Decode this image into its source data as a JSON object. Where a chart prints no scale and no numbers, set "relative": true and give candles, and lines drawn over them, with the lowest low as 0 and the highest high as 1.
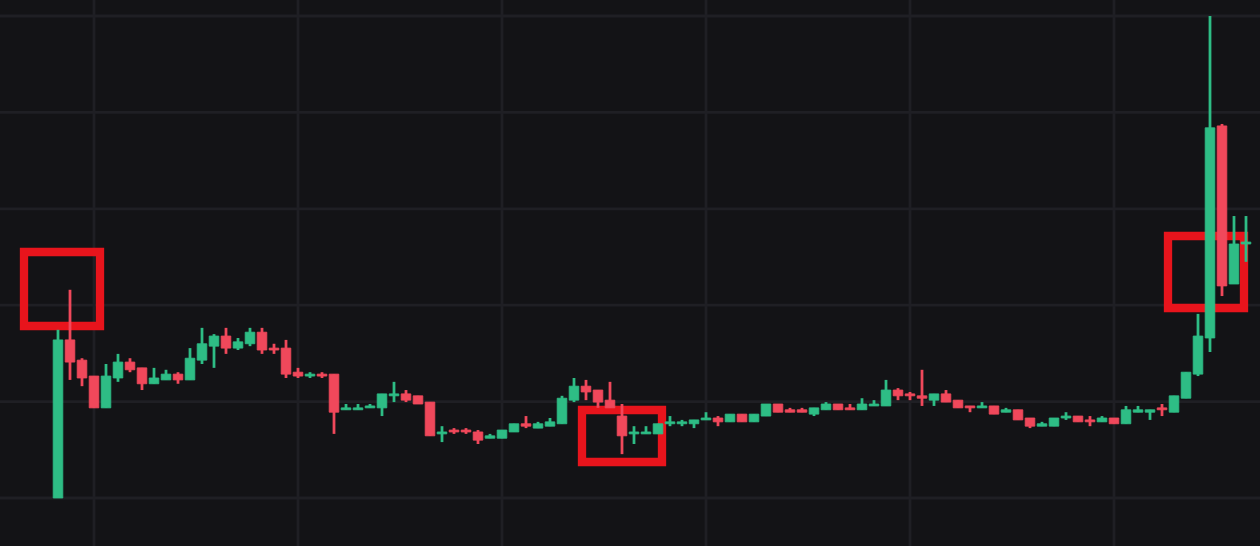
{
  "chart_data": {
    "type": "candlestick",
    "relative": true,
    "grid": true,
    "categories": [
      null,
      null,
      null,
      null,
      null,
      null,
      null,
      null,
      null,
      null,
      null,
      null,
      null,
      null,
      null,
      null,
      null,
      null,
      null,
      null,
      null,
      null,
      null,
      null,
      null,
      null,
      null,
      null,
      null,
      null,
      null,
      null,
      null,
      null,
      null,
      null,
      null,
      null,
      null,
      null,
      null,
      null,
      null,
      null,
      null,
      null,
      null,
      null,
      null,
      null,
      null,
      null,
      null,
      null,
      null,
      null,
      null,
      null,
      null,
      null,
      null,
      null,
      null,
      null,
      null,
      null,
      null,
      null,
      null,
      null,
      null,
      null,
      null,
      null,
      null,
      null,
      null,
      null,
      null,
      null,
      null,
      null,
      null,
      null,
      null,
      null,
      null,
      null,
      null,
      null,
      null,
      null,
      null,
      null,
      null,
      null,
      null,
      null,
      null,
      null
    ],
    "ohlc": [
      [
        0,
        0.349,
        0,
        0.328
      ],
      [
        0.328,
        0.432,
        0.245,
        0.282
      ],
      [
        0.286,
        0.29,
        0.232,
        0.249
      ],
      [
        0.253,
        0.253,
        0.187,
        0.187
      ],
      [
        0.187,
        0.278,
        0.187,
        0.253
      ],
      [
        0.249,
        0.299,
        0.241,
        0.282
      ],
      [
        0.282,
        0.29,
        0.261,
        0.266
      ],
      [
        0.27,
        0.27,
        0.224,
        0.237
      ],
      [
        0.237,
        0.27,
        0.237,
        0.249
      ],
      [
        0.245,
        0.266,
        0.245,
        0.257
      ],
      [
        0.257,
        0.261,
        0.237,
        0.245
      ],
      [
        0.245,
        0.311,
        0.245,
        0.29
      ],
      [
        0.286,
        0.353,
        0.278,
        0.32
      ],
      [
        0.315,
        0.34,
        0.27,
        0.336
      ],
      [
        0.336,
        0.353,
        0.299,
        0.311
      ],
      [
        0.311,
        0.332,
        0.307,
        0.324
      ],
      [
        0.32,
        0.353,
        0.315,
        0.344
      ],
      [
        0.344,
        0.353,
        0.299,
        0.307
      ],
      [
        0.311,
        0.32,
        0.299,
        0.307
      ],
      [
        0.311,
        0.328,
        0.249,
        0.257
      ],
      [
        0.261,
        0.27,
        0.249,
        0.253
      ],
      [
        0.253,
        0.261,
        0.249,
        0.257
      ],
      [
        0.257,
        0.261,
        0.249,
        0.253
      ],
      [
        0.257,
        0.257,
        0.133,
        0.178
      ],
      [
        0.183,
        0.195,
        0.183,
        0.187
      ],
      [
        0.183,
        0.195,
        0.183,
        0.187
      ],
      [
        0.187,
        0.195,
        0.187,
        0.191
      ],
      [
        0.187,
        0.216,
        0.17,
        0.216
      ],
      [
        0.212,
        0.241,
        0.199,
        0.216
      ],
      [
        0.216,
        0.224,
        0.199,
        0.203
      ],
      [
        0.212,
        0.212,
        0.195,
        0.195
      ],
      [
        0.199,
        0.199,
        0.129,
        0.129
      ],
      [
        0.133,
        0.149,
        0.116,
        0.137
      ],
      [
        0.141,
        0.145,
        0.133,
        0.137
      ],
      [
        0.141,
        0.145,
        0.133,
        0.137
      ],
      [
        0.137,
        0.141,
        0.112,
        0.12
      ],
      [
        0.124,
        0.133,
        0.124,
        0.129
      ],
      [
        0.124,
        0.141,
        0.124,
        0.141
      ],
      [
        0.137,
        0.154,
        0.137,
        0.154
      ],
      [
        0.154,
        0.17,
        0.145,
        0.149
      ],
      [
        0.145,
        0.158,
        0.145,
        0.154
      ],
      [
        0.149,
        0.166,
        0.149,
        0.158
      ],
      [
        0.154,
        0.212,
        0.154,
        0.207
      ],
      [
        0.203,
        0.249,
        0.199,
        0.232
      ],
      [
        0.232,
        0.245,
        0.203,
        0.22
      ],
      [
        0.224,
        0.224,
        0.187,
        0.199
      ],
      [
        0.203,
        0.241,
        0.187,
        0.187
      ],
      [
        0.17,
        0.195,
        0.091,
        0.129
      ],
      [
        0.133,
        0.149,
        0.112,
        0.137
      ],
      [
        0.133,
        0.149,
        0.133,
        0.137
      ],
      [
        0.133,
        0.154,
        0.133,
        0.154
      ],
      [
        0.154,
        0.17,
        0.149,
        0.158
      ],
      [
        0.154,
        0.162,
        0.149,
        0.158
      ],
      [
        0.154,
        0.162,
        0.145,
        0.162
      ],
      [
        0.162,
        0.178,
        0.162,
        0.166
      ],
      [
        0.166,
        0.17,
        0.149,
        0.158
      ],
      [
        0.158,
        0.174,
        0.158,
        0.174
      ],
      [
        0.174,
        0.174,
        0.158,
        0.158
      ],
      [
        0.158,
        0.174,
        0.158,
        0.174
      ],
      [
        0.17,
        0.195,
        0.17,
        0.195
      ],
      [
        0.195,
        0.195,
        0.178,
        0.178
      ],
      [
        0.183,
        0.187,
        0.178,
        0.178
      ],
      [
        0.183,
        0.187,
        0.178,
        0.178
      ],
      [
        0.174,
        0.187,
        0.17,
        0.187
      ],
      [
        0.183,
        0.199,
        0.183,
        0.195
      ],
      [
        0.195,
        0.195,
        0.183,
        0.183
      ],
      [
        0.187,
        0.195,
        0.183,
        0.183
      ],
      [
        0.183,
        0.207,
        0.183,
        0.195
      ],
      [
        0.191,
        0.203,
        0.191,
        0.195
      ],
      [
        0.191,
        0.245,
        0.191,
        0.224
      ],
      [
        0.224,
        0.228,
        0.203,
        0.212
      ],
      [
        0.216,
        0.22,
        0.203,
        0.212
      ],
      [
        0.212,
        0.266,
        0.191,
        0.207
      ],
      [
        0.203,
        0.216,
        0.191,
        0.216
      ],
      [
        0.216,
        0.224,
        0.199,
        0.199
      ],
      [
        0.203,
        0.203,
        0.187,
        0.187
      ],
      [
        0.191,
        0.191,
        0.178,
        0.187
      ],
      [
        0.187,
        0.199,
        0.187,
        0.191
      ],
      [
        0.191,
        0.191,
        0.174,
        0.174
      ],
      [
        0.178,
        0.187,
        0.178,
        0.183
      ],
      [
        0.183,
        0.183,
        0.162,
        0.162
      ],
      [
        0.166,
        0.166,
        0.145,
        0.149
      ],
      [
        0.149,
        0.158,
        0.149,
        0.154
      ],
      [
        0.149,
        0.166,
        0.149,
        0.166
      ],
      [
        0.166,
        0.178,
        0.162,
        0.17
      ],
      [
        0.17,
        0.17,
        0.158,
        0.158
      ],
      [
        0.162,
        0.17,
        0.149,
        0.158
      ],
      [
        0.158,
        0.17,
        0.158,
        0.166
      ],
      [
        0.166,
        0.166,
        0.154,
        0.154
      ],
      [
        0.154,
        0.191,
        0.154,
        0.183
      ],
      [
        0.178,
        0.191,
        0.178,
        0.183
      ],
      [
        0.178,
        0.183,
        0.162,
        0.183
      ],
      [
        0.187,
        0.195,
        0.17,
        0.183
      ],
      [
        0.178,
        0.212,
        0.178,
        0.212
      ],
      [
        0.207,
        0.261,
        0.207,
        0.261
      ],
      [
        0.257,
        0.382,
        0.253,
        0.336
      ],
      [
        0.332,
        1,
        0.303,
        0.768
      ],
      [
        0.772,
        0.776,
        0.419,
        0.44
      ],
      [
        0.444,
        0.585,
        0.444,
        0.527
      ],
      [
        0.527,
        0.585,
        0.49,
        0.531
      ]
    ]
  }
}
